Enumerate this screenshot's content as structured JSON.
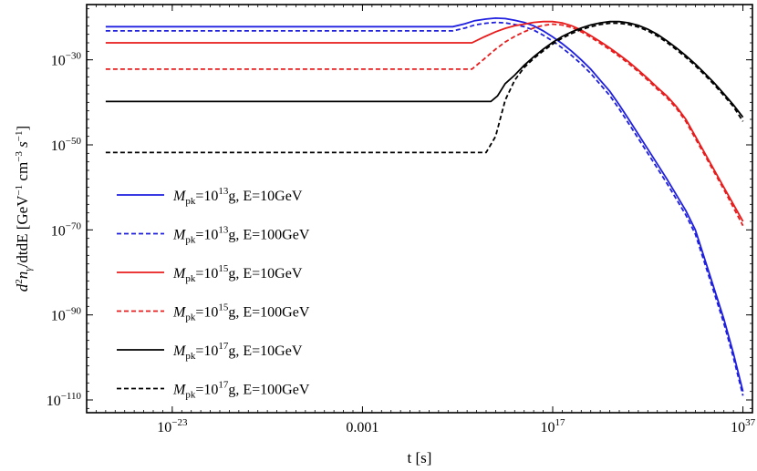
{
  "chart_data": {
    "type": "line",
    "xlabel": "t [s]",
    "ylabel": "d²n_γ/dtdE [GeV⁻¹ cm⁻³ s⁻¹]",
    "x_scale": "log",
    "y_scale": "log",
    "xlim": [
      1e-32,
      1e+38
    ],
    "ylim": [
      1e-113,
      1e-17
    ],
    "x_ticks": [
      {
        "value": 1e-23,
        "label": "10",
        "exp": "−23"
      },
      {
        "value": 0.001,
        "label": "0.001",
        "exp": ""
      },
      {
        "value": 1e+17,
        "label": "10",
        "exp": "17"
      },
      {
        "value": 1e+37,
        "label": "10",
        "exp": "37"
      }
    ],
    "y_ticks": [
      {
        "value": 1e-30,
        "label": "10",
        "exp": "−30"
      },
      {
        "value": 1e-50,
        "label": "10",
        "exp": "−50"
      },
      {
        "value": 1e-70,
        "label": "10",
        "exp": "−70"
      },
      {
        "value": 1e-90,
        "label": "10",
        "exp": "−90"
      },
      {
        "value": 1e-110,
        "label": "10",
        "exp": "−110"
      }
    ],
    "grid": false,
    "legend_position": "lower-left",
    "series": [
      {
        "name": "M_pk=10¹³g, E=10GeV",
        "label_parts": {
          "mass_exp": "13",
          "energy": "E=10GeV"
        },
        "color": "#1f1fe0",
        "dash": "solid",
        "x_log10": [
          -30,
          6.5,
          7.8,
          8.8,
          10,
          11,
          12,
          13,
          14,
          15,
          16,
          17,
          18,
          19,
          20,
          21,
          22,
          23,
          24,
          25,
          27,
          29,
          31,
          32,
          33,
          34,
          35,
          36,
          37
        ],
        "y_log10": [
          -22.2,
          -22.2,
          -21.5,
          -20.8,
          -20.4,
          -20.2,
          -20.3,
          -20.7,
          -21.2,
          -22.0,
          -23.2,
          -24.6,
          -26.2,
          -28.0,
          -30.0,
          -32.2,
          -34.8,
          -37.4,
          -40.6,
          -44.0,
          -51.0,
          -58.0,
          -65.5,
          -70.0,
          -77.0,
          -84.0,
          -91.0,
          -99.0,
          -108.0
        ]
      },
      {
        "name": "M_pk=10¹³g, E=100GeV",
        "label_parts": {
          "mass_exp": "13",
          "energy": "E=100GeV"
        },
        "color": "#1f1fe0",
        "dash": "dashed",
        "x_log10": [
          -30,
          6.5,
          7.8,
          8.8,
          10,
          11,
          12,
          13,
          14,
          15,
          16,
          17,
          18,
          19,
          20,
          21,
          22,
          23,
          24,
          25,
          27,
          29,
          31,
          32,
          33,
          34,
          35,
          36,
          37
        ],
        "y_log10": [
          -23.2,
          -23.2,
          -22.5,
          -21.8,
          -21.4,
          -21.2,
          -21.3,
          -21.7,
          -22.2,
          -23.0,
          -24.2,
          -25.6,
          -27.2,
          -29.0,
          -31.0,
          -33.2,
          -35.8,
          -38.4,
          -41.6,
          -45.0,
          -52.0,
          -59.0,
          -66.5,
          -71.0,
          -78.0,
          -85.0,
          -92.0,
          -100.0,
          -109.0
        ]
      },
      {
        "name": "M_pk=10¹⁵g, E=10GeV",
        "label_parts": {
          "mass_exp": "15",
          "energy": "E=10GeV"
        },
        "color": "#e81c1c",
        "dash": "solid",
        "x_log10": [
          -30,
          8.5,
          9.8,
          11,
          12,
          13,
          14,
          15,
          16,
          17,
          18,
          19,
          20,
          21,
          22,
          23,
          24,
          25,
          26,
          27,
          28,
          29,
          30,
          31,
          33,
          35,
          37
        ],
        "y_log10": [
          -26.0,
          -26.0,
          -24.6,
          -23.4,
          -22.6,
          -22.0,
          -21.6,
          -21.2,
          -21.0,
          -21.0,
          -21.3,
          -22.0,
          -23.0,
          -24.3,
          -25.7,
          -27.2,
          -28.8,
          -30.5,
          -32.4,
          -34.4,
          -36.5,
          -38.5,
          -41.0,
          -44.0,
          -52.0,
          -60.0,
          -68.0
        ]
      },
      {
        "name": "M_pk=10¹⁵g, E=100GeV",
        "label_parts": {
          "mass_exp": "15",
          "energy": "E=100GeV"
        },
        "color": "#e81c1c",
        "dash": "dashed",
        "x_log10": [
          -30,
          8.5,
          9.8,
          11,
          12,
          13,
          14,
          15,
          16,
          17,
          18,
          19,
          20,
          21,
          22,
          23,
          24,
          25,
          26,
          27,
          28,
          29,
          30,
          31,
          33,
          35,
          37
        ],
        "y_log10": [
          -32.2,
          -32.2,
          -29.8,
          -27.5,
          -25.8,
          -24.5,
          -23.4,
          -22.5,
          -21.9,
          -21.6,
          -21.8,
          -22.4,
          -23.4,
          -24.7,
          -26.1,
          -27.6,
          -29.2,
          -30.9,
          -32.8,
          -34.8,
          -36.9,
          -38.9,
          -41.4,
          -44.5,
          -52.5,
          -60.5,
          -69.0
        ]
      },
      {
        "name": "M_pk=10¹⁷g, E=10GeV",
        "label_parts": {
          "mass_exp": "17",
          "energy": "E=10GeV"
        },
        "color": "#000000",
        "dash": "solid",
        "x_log10": [
          -30,
          10.5,
          11.2,
          12,
          13,
          14,
          15,
          16,
          17,
          18,
          19,
          20,
          21,
          22,
          23,
          24,
          25,
          26,
          27,
          28,
          29,
          30,
          31,
          32,
          33,
          34,
          35,
          36,
          37
        ],
        "y_log10": [
          -39.8,
          -39.8,
          -38.5,
          -35.6,
          -33.6,
          -31.3,
          -29.3,
          -27.5,
          -25.9,
          -24.5,
          -23.4,
          -22.5,
          -21.8,
          -21.3,
          -21.0,
          -21.0,
          -21.3,
          -21.9,
          -22.8,
          -24.0,
          -25.5,
          -27.2,
          -29.0,
          -31.0,
          -33.2,
          -35.5,
          -38.0,
          -40.6,
          -43.5
        ]
      },
      {
        "name": "M_pk=10¹⁷g, E=100GeV",
        "label_parts": {
          "mass_exp": "17",
          "energy": "E=100GeV"
        },
        "color": "#000000",
        "dash": "dashed",
        "x_log10": [
          -30,
          10.0,
          11.0,
          12,
          13,
          14,
          15,
          16,
          17,
          18,
          19,
          20,
          21,
          22,
          23,
          24,
          25,
          26,
          27,
          28,
          29,
          30,
          31,
          32,
          33,
          34,
          35,
          36,
          37
        ],
        "y_log10": [
          -51.8,
          -51.8,
          -48.0,
          -39.5,
          -34.8,
          -31.8,
          -29.7,
          -27.9,
          -26.3,
          -24.9,
          -23.8,
          -22.9,
          -22.2,
          -21.7,
          -21.4,
          -21.4,
          -21.7,
          -22.3,
          -23.2,
          -24.4,
          -25.9,
          -27.6,
          -29.4,
          -31.4,
          -33.6,
          -35.9,
          -38.4,
          -41.0,
          -44.5
        ]
      }
    ]
  }
}
